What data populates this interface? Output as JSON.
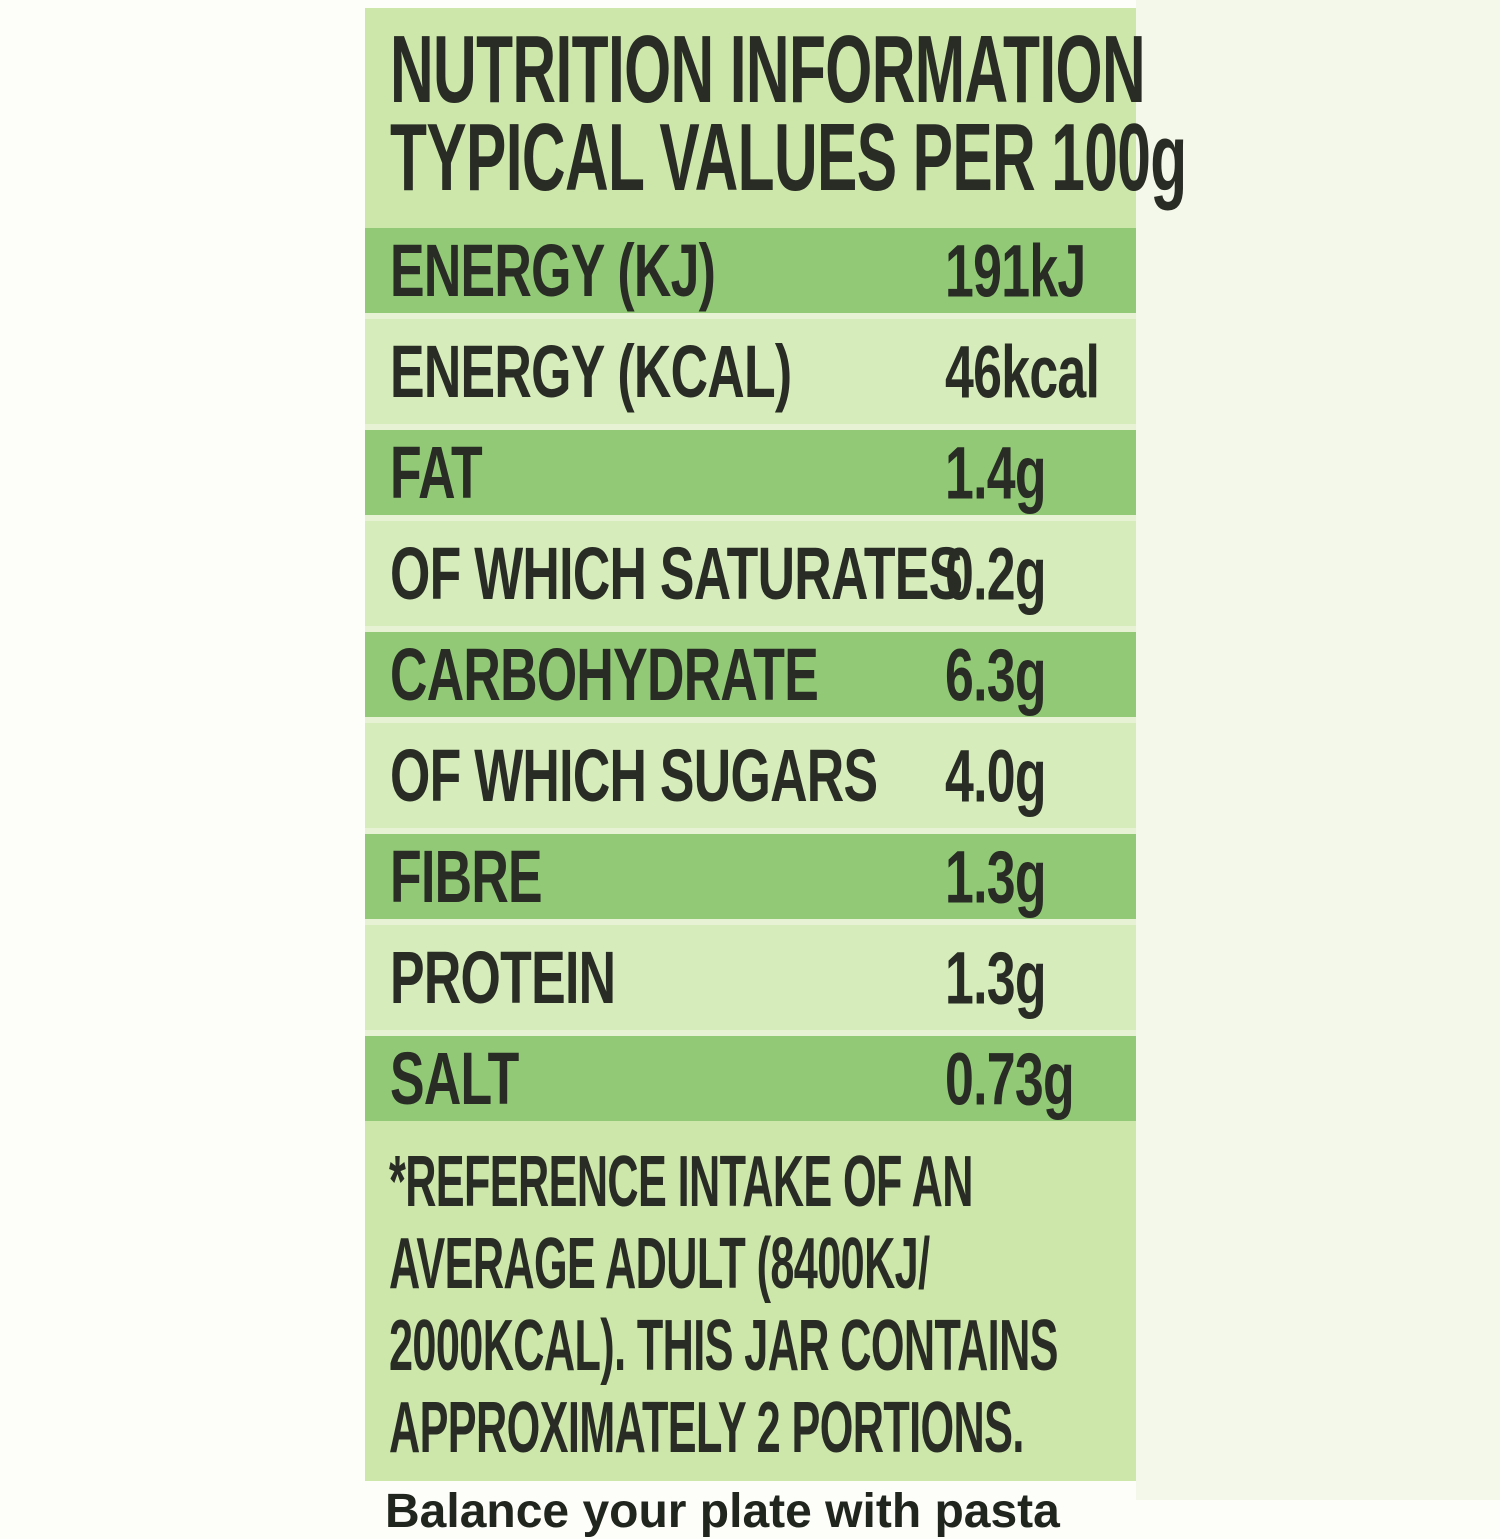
{
  "label": {
    "title_line1": "NUTRITION INFORMATION",
    "title_line2": "TYPICAL VALUES PER 100g",
    "rows": [
      {
        "label": "ENERGY (KJ)",
        "value": "191kJ",
        "highlighted": true
      },
      {
        "label": "ENERGY (KCAL)",
        "value": "46kcal",
        "highlighted": false
      },
      {
        "label": "FAT",
        "value": "1.4g",
        "highlighted": true
      },
      {
        "label": "OF WHICH SATURATES",
        "value": "0.2g",
        "highlighted": false
      },
      {
        "label": "CARBOHYDRATE",
        "value": "6.3g",
        "highlighted": true
      },
      {
        "label": "OF WHICH SUGARS",
        "value": "4.0g",
        "highlighted": false
      },
      {
        "label": "FIBRE",
        "value": "1.3g",
        "highlighted": true
      },
      {
        "label": "PROTEIN",
        "value": "1.3g",
        "highlighted": false
      },
      {
        "label": "SALT",
        "value": "0.73g",
        "highlighted": true
      }
    ],
    "footnote_lines": [
      "*REFERENCE INTAKE OF AN",
      "AVERAGE ADULT (8400KJ/",
      "2000KCAL). THIS JAR CONTAINS",
      "APPROXIMATELY 2 PORTIONS."
    ],
    "partial_bottom_text": "Balance your plate with pasta",
    "colors": {
      "panel_bg": "#cde7ab",
      "row_light": "#d6ecbb",
      "row_hl": "#92c977",
      "sep": "#e6f2d3",
      "text": "#282c24",
      "page_right": "#f4f8ea"
    }
  }
}
